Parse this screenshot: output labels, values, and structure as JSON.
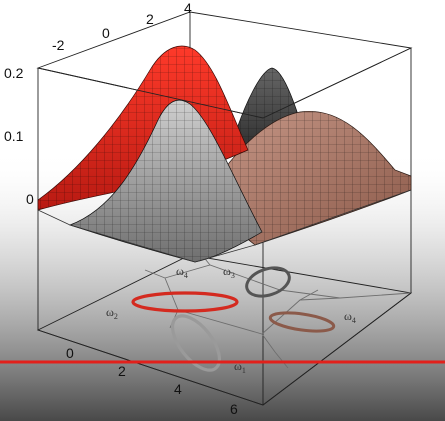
{
  "axes": {
    "top_ticks": [
      "-2",
      "0",
      "2",
      "4"
    ],
    "vertical_ticks": [
      "0.2",
      "0.1",
      "0"
    ],
    "bottom_ticks": [
      "0",
      "2",
      "4",
      "6"
    ]
  },
  "regions": [
    {
      "symbol": "ω",
      "index": "1"
    },
    {
      "symbol": "ω",
      "index": "2"
    },
    {
      "symbol": "ω",
      "index": "3"
    },
    {
      "symbol": "ω",
      "index": "4"
    },
    {
      "symbol": "ω",
      "index": "4"
    }
  ],
  "colors": {
    "surface_red": "#e8231a",
    "surface_gray": "#9a9a9a",
    "surface_dark": "#4a4a4a",
    "surface_brown": "#b07a6c",
    "contour_red": "#d42a1f",
    "contour_gray": "#9a9a9a",
    "contour_dark": "#555555",
    "contour_brown": "#8b5a4a",
    "marker_line": "#e2201b",
    "vignette": "#4a4a4a"
  }
}
